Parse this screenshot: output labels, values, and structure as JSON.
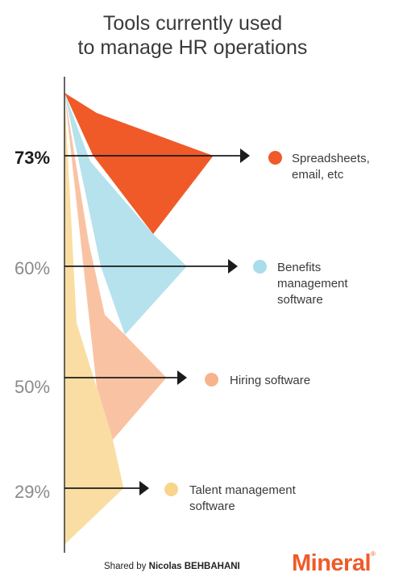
{
  "chart_data": {
    "type": "area",
    "title_line1": "Tools currently used",
    "title_line2": "to manage HR operations",
    "series": [
      {
        "name": "Spreadsheets, email, etc",
        "label_line1": "Spreadsheets,",
        "label_line2": "email, etc",
        "label_line3": "",
        "value": 73,
        "value_label": "73%",
        "color": "#f05a28"
      },
      {
        "name": "Benefits management software",
        "label_line1": "Benefits",
        "label_line2": "management",
        "label_line3": "software",
        "value": 60,
        "value_label": "60%",
        "color": "#a8dde9"
      },
      {
        "name": "Hiring software",
        "label_line1": "Hiring software",
        "label_line2": "",
        "label_line3": "",
        "value": 50,
        "value_label": "50%",
        "color": "#f7b48c"
      },
      {
        "name": "Talent management software",
        "label_line1": "Talent management",
        "label_line2": "software",
        "label_line3": "",
        "value": 29,
        "value_label": "29%",
        "color": "#f9d48b"
      }
    ]
  },
  "footer": {
    "shared_prefix": "Shared by",
    "shared_name": "Nicolas BEHBAHANI",
    "logo": "Mineral"
  }
}
